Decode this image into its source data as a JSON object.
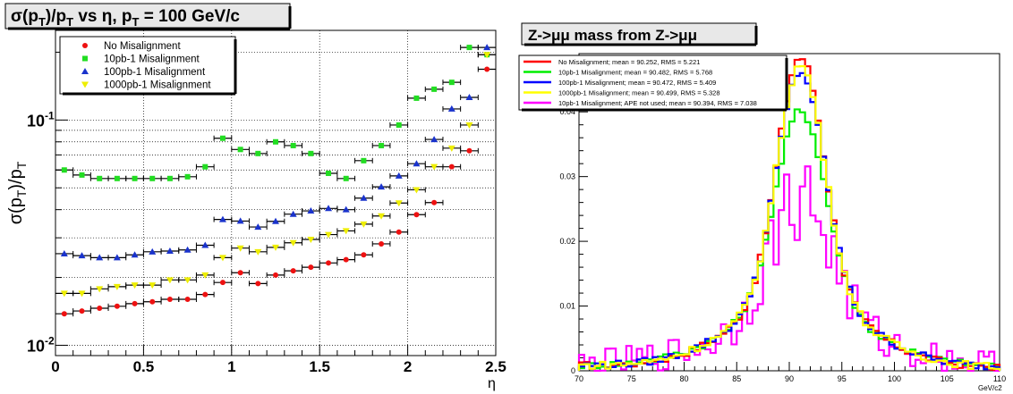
{
  "chart_data": [
    {
      "type": "scatter",
      "title": "σ(p_T)/p_T vs η, p_T = 100 GeV/c",
      "title_parts": {
        "a": "σ(p",
        "a_sub": "T",
        "b": ")/p",
        "b_sub": "T",
        "c": " vs η, p",
        "c_sub": "T",
        "d": " = 100 GeV/c"
      },
      "xlabel": "η",
      "ylabel": "σ(p_T)/p_T",
      "ylabel_parts": {
        "a": "σ(p",
        "a_sub": "T",
        "b": ")/p",
        "b_sub": "T"
      },
      "xlim": [
        0,
        2.5
      ],
      "ylim": [
        0.009,
        0.25
      ],
      "yscale": "log",
      "grid": true,
      "legend_position": "top-left",
      "x_ticks": [
        "0",
        "0.5",
        "1",
        "1.5",
        "2",
        "2.5"
      ],
      "y_ticks": [
        {
          "value": 0.01,
          "base": "10",
          "exp": "-2"
        },
        {
          "value": 0.1,
          "base": "10",
          "exp": "-1"
        }
      ],
      "x_bin_half_width": 0.05,
      "x": [
        0.05,
        0.15,
        0.25,
        0.35,
        0.45,
        0.55,
        0.65,
        0.75,
        0.85,
        0.95,
        1.05,
        1.15,
        1.25,
        1.35,
        1.45,
        1.55,
        1.65,
        1.75,
        1.85,
        1.95,
        2.05,
        2.15,
        2.25,
        2.35,
        2.45
      ],
      "series": [
        {
          "name": "No Misalignment",
          "color": "#ee1111",
          "marker": "circle",
          "values": [
            0.0138,
            0.0142,
            0.0146,
            0.0149,
            0.0153,
            0.0156,
            0.016,
            0.016,
            0.0168,
            0.019,
            0.021,
            0.0188,
            0.0205,
            0.0214,
            0.0222,
            0.0232,
            0.024,
            0.0252,
            0.0282,
            0.0318,
            0.038,
            0.043,
            0.062,
            0.073,
            0.168
          ]
        },
        {
          "name": "10pb-1 Misalignment",
          "color": "#22dd22",
          "marker": "square",
          "values": [
            0.06,
            0.057,
            0.055,
            0.055,
            0.055,
            0.055,
            0.055,
            0.056,
            0.062,
            0.083,
            0.074,
            0.071,
            0.08,
            0.077,
            0.071,
            0.058,
            0.055,
            0.066,
            0.077,
            0.095,
            0.125,
            0.137,
            0.147,
            0.21,
            0.195
          ]
        },
        {
          "name": "100pb-1 Misalignment",
          "color": "#1a33cc",
          "marker": "triangle",
          "values": [
            0.0255,
            0.025,
            0.0245,
            0.0245,
            0.0252,
            0.026,
            0.0262,
            0.0265,
            0.0278,
            0.0362,
            0.0356,
            0.0335,
            0.0355,
            0.0382,
            0.0395,
            0.0405,
            0.04,
            0.045,
            0.0505,
            0.0565,
            0.064,
            0.082,
            0.112,
            0.126,
            0.21
          ]
        },
        {
          "name": "1000pb-1 Misalignment",
          "color": "#eeee00",
          "marker": "triangle-down",
          "values": [
            0.017,
            0.017,
            0.0178,
            0.0182,
            0.0185,
            0.0185,
            0.0195,
            0.0195,
            0.0205,
            0.0245,
            0.027,
            0.026,
            0.0272,
            0.0285,
            0.0295,
            0.031,
            0.0322,
            0.0345,
            0.0375,
            0.0428,
            0.049,
            0.062,
            0.075,
            0.095,
            0.195
          ]
        }
      ]
    },
    {
      "type": "line",
      "step": true,
      "title": "Z->μμ mass from Z->μμ",
      "xlabel": "GeV/c2",
      "ylabel": "",
      "xlim": [
        70,
        110
      ],
      "ylim": [
        0,
        0.049
      ],
      "x_ticks": [
        "70",
        "75",
        "80",
        "85",
        "90",
        "95",
        "100",
        "105",
        "110"
      ],
      "y_ticks": [
        "0",
        "0.01",
        "0.02",
        "0.03",
        "0.04"
      ],
      "legend_position": "top-left",
      "bin_width": 0.5,
      "series": [
        {
          "name": "No Misalignment;     mean = 90.252, RMS = 5.221",
          "color": "#ff0000",
          "mean": 90.252,
          "rms": 5.221,
          "peak": 0.0478,
          "noise": 0
        },
        {
          "name": "10pb-1 Misalignment; mean = 90.482, RMS = 5.768",
          "color": "#00ee00",
          "mean": 90.482,
          "rms": 5.768,
          "peak": 0.0395,
          "noise": 0
        },
        {
          "name": "100pb-1 Misalignment;  mean = 90.472, RMS = 5.409",
          "color": "#0000ff",
          "mean": 90.472,
          "rms": 5.409,
          "peak": 0.0455,
          "noise": 0
        },
        {
          "name": "1000pb-1 Misalignment;  mean = 90.499, RMS = 5.328",
          "color": "#ffff00",
          "mean": 90.499,
          "rms": 5.328,
          "peak": 0.0465,
          "noise": 0
        },
        {
          "name": "10pb-1 Misalignment; APE not used; mean = 90.394, RMS = 7.038",
          "color": "#ff00ff",
          "mean": 90.394,
          "rms": 7.038,
          "peak": 0.0262,
          "noise": 1
        }
      ]
    }
  ]
}
